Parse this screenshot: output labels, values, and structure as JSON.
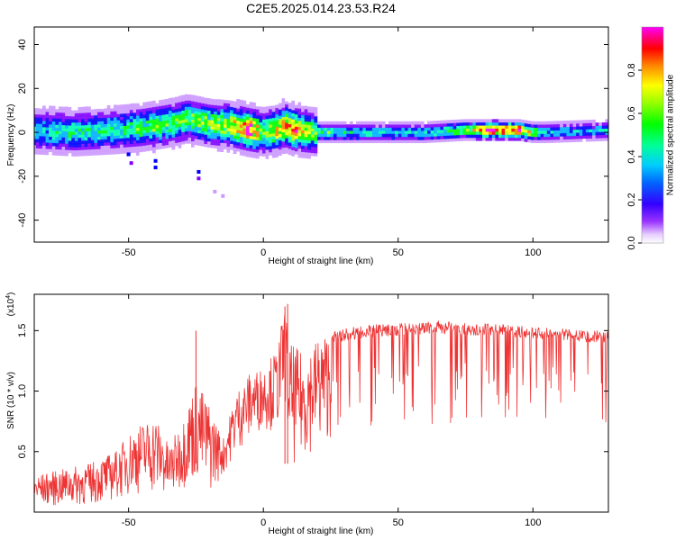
{
  "title": "C2E5.2025.014.23.53.R24",
  "chart_data": [
    {
      "type": "heatmap",
      "xlabel": "Height of straight line (km)",
      "ylabel": "Frequency (Hz)",
      "xlim": [
        -85,
        128
      ],
      "ylim": [
        -50,
        48
      ],
      "xticks": [
        "-50",
        "0",
        "50",
        "100"
      ],
      "yticks": [
        "40",
        "20",
        "0",
        "-20",
        "-40"
      ],
      "colorbar": {
        "label": "Normalized spectral amplitude",
        "range": [
          0.0,
          1.0
        ],
        "ticks": [
          "0.0",
          "0.2",
          "0.4",
          "0.6",
          "0.8"
        ]
      },
      "ridge": {
        "x": [
          -85,
          -70,
          -55,
          -45,
          -35,
          -28,
          -20,
          -12,
          -5,
          0,
          5,
          8,
          12,
          20,
          40,
          60,
          75,
          85,
          95,
          100,
          105,
          128
        ],
        "center_hz": [
          1,
          0,
          1,
          2,
          4,
          6,
          4,
          3,
          1,
          0,
          1,
          3,
          1,
          0,
          0,
          0,
          1,
          1,
          1,
          0,
          0,
          1
        ],
        "amplitude": [
          0.4,
          0.45,
          0.45,
          0.5,
          0.55,
          0.55,
          0.6,
          0.65,
          0.9,
          0.55,
          0.7,
          0.75,
          0.8,
          0.5,
          0.4,
          0.4,
          0.55,
          0.9,
          0.9,
          0.6,
          0.4,
          0.35
        ]
      },
      "colors": {
        "scale": [
          "#ffffff",
          "#cc99ff",
          "#8000ff",
          "#0000ff",
          "#00b0ff",
          "#00ffb0",
          "#00ff00",
          "#b0ff00",
          "#ffff00",
          "#ff8000",
          "#ff0000",
          "#ff00ff"
        ]
      }
    },
    {
      "type": "line",
      "xlabel": "Height of straight line (km)",
      "ylabel": "SNR (10 * v/v)",
      "y_multiplier": "(x10",
      "y_multiplier_exp": "4",
      "y_multiplier_close": ")",
      "xlim": [
        -85,
        128
      ],
      "ylim": [
        0,
        1.8
      ],
      "xticks": [
        "-50",
        "0",
        "50",
        "100"
      ],
      "yticks": [
        "1.5",
        "1.0",
        "0.5"
      ],
      "series": [
        {
          "color": "#ee3333",
          "envelope": {
            "x": [
              -85,
              -75,
              -65,
              -55,
              -48,
              -40,
              -35,
              -30,
              -25,
              -20,
              -15,
              -10,
              -5,
              0,
              5,
              8,
              10,
              15,
              20,
              25,
              30,
              40,
              50,
              60,
              65,
              70,
              80,
              90,
              100,
              110,
              120,
              128
            ],
            "upper": [
              0.3,
              0.35,
              0.4,
              0.5,
              0.7,
              0.8,
              0.55,
              0.75,
              1.1,
              0.9,
              0.6,
              1.0,
              1.15,
              1.2,
              1.35,
              1.72,
              1.4,
              1.3,
              1.45,
              1.5,
              1.52,
              1.55,
              1.56,
              1.57,
              1.58,
              1.57,
              1.56,
              1.55,
              1.53,
              1.52,
              1.5,
              1.5
            ],
            "lower": [
              0.05,
              0.05,
              0.05,
              0.1,
              0.15,
              0.15,
              0.1,
              0.2,
              0.25,
              0.15,
              0.3,
              0.5,
              0.6,
              0.7,
              0.65,
              0.9,
              0.35,
              0.45,
              0.55,
              0.6,
              0.65,
              0.68,
              0.7,
              0.72,
              0.72,
              0.73,
              0.73,
              0.72,
              0.72,
              0.72,
              0.72,
              0.7
            ]
          },
          "spikes": [
            {
              "x": -25,
              "y": 1.5
            },
            {
              "x": 8,
              "y": 1.7
            },
            {
              "x": 9,
              "y": 1.72
            }
          ]
        }
      ]
    }
  ]
}
